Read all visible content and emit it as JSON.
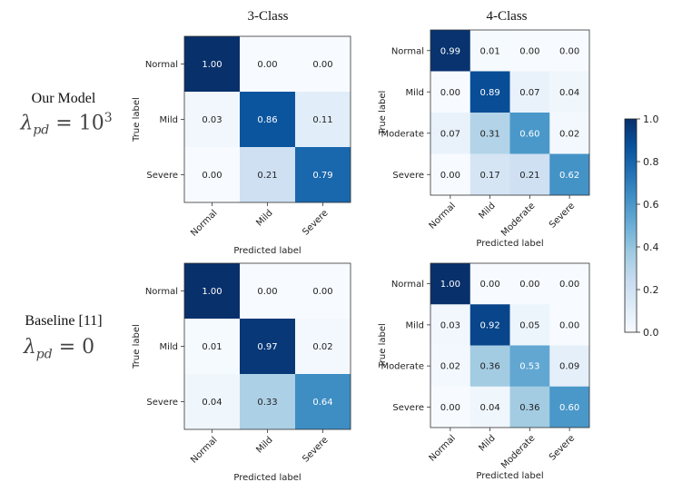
{
  "column_titles": [
    "3-Class",
    "4-Class"
  ],
  "rows": [
    {
      "name": "Our Model",
      "lambda_label": "λpd = 10³",
      "lambda_value": "10",
      "lambda_exp": "3"
    },
    {
      "name": "Baseline [11]",
      "lambda_label": "λpd = 0",
      "lambda_value": "0",
      "lambda_exp": ""
    }
  ],
  "colorbar": {
    "ticks": [
      "0.0",
      "0.2",
      "0.4",
      "0.6",
      "0.8",
      "1.0"
    ],
    "min": 0,
    "max": 1,
    "colormap": "Blues"
  },
  "chart_data": [
    {
      "type": "heatmap",
      "panel": "Our Model, 3-Class",
      "title": "3-Class",
      "xlabel": "Predicted label",
      "ylabel": "True label",
      "x_categories": [
        "Normal",
        "Mild",
        "Severe"
      ],
      "y_categories": [
        "Normal",
        "Mild",
        "Severe"
      ],
      "values": [
        [
          1.0,
          0.0,
          0.0
        ],
        [
          0.03,
          0.86,
          0.11
        ],
        [
          0.0,
          0.21,
          0.79
        ]
      ],
      "value_labels": [
        [
          "1.00",
          "0.00",
          "0.00"
        ],
        [
          "0.03",
          "0.86",
          "0.11"
        ],
        [
          "0.00",
          "0.21",
          "0.79"
        ]
      ]
    },
    {
      "type": "heatmap",
      "panel": "Our Model, 4-Class",
      "title": "4-Class",
      "xlabel": "Predicted label",
      "ylabel": "True label",
      "x_categories": [
        "Normal",
        "Mild",
        "Moderate",
        "Severe"
      ],
      "y_categories": [
        "Normal",
        "Mild",
        "Moderate",
        "Severe"
      ],
      "values": [
        [
          0.99,
          0.01,
          0.0,
          0.0
        ],
        [
          0.0,
          0.89,
          0.07,
          0.04
        ],
        [
          0.07,
          0.31,
          0.6,
          0.02
        ],
        [
          0.0,
          0.17,
          0.21,
          0.62
        ]
      ],
      "value_labels": [
        [
          "0.99",
          "0.01",
          "0.00",
          "0.00"
        ],
        [
          "0.00",
          "0.89",
          "0.07",
          "0.04"
        ],
        [
          "0.07",
          "0.31",
          "0.60",
          "0.02"
        ],
        [
          "0.00",
          "0.17",
          "0.21",
          "0.62"
        ]
      ]
    },
    {
      "type": "heatmap",
      "panel": "Baseline, 3-Class",
      "xlabel": "Predicted label",
      "ylabel": "True label",
      "x_categories": [
        "Normal",
        "Mild",
        "Severe"
      ],
      "y_categories": [
        "Normal",
        "Mild",
        "Severe"
      ],
      "values": [
        [
          1.0,
          0.0,
          0.0
        ],
        [
          0.01,
          0.97,
          0.02
        ],
        [
          0.04,
          0.33,
          0.64
        ]
      ],
      "value_labels": [
        [
          "1.00",
          "0.00",
          "0.00"
        ],
        [
          "0.01",
          "0.97",
          "0.02"
        ],
        [
          "0.04",
          "0.33",
          "0.64"
        ]
      ]
    },
    {
      "type": "heatmap",
      "panel": "Baseline, 4-Class",
      "xlabel": "Predicted label",
      "ylabel": "True label",
      "x_categories": [
        "Normal",
        "Mild",
        "Moderate",
        "Severe"
      ],
      "y_categories": [
        "Normal",
        "Mild",
        "Moderate",
        "Severe"
      ],
      "values": [
        [
          1.0,
          0.0,
          0.0,
          0.0
        ],
        [
          0.03,
          0.92,
          0.05,
          0.0
        ],
        [
          0.02,
          0.36,
          0.53,
          0.09
        ],
        [
          0.0,
          0.04,
          0.36,
          0.6
        ]
      ],
      "value_labels": [
        [
          "1.00",
          "0.00",
          "0.00",
          "0.00"
        ],
        [
          "0.03",
          "0.92",
          "0.05",
          "0.00"
        ],
        [
          "0.02",
          "0.36",
          "0.53",
          "0.09"
        ],
        [
          "0.00",
          "0.04",
          "0.36",
          "0.60"
        ]
      ]
    }
  ]
}
